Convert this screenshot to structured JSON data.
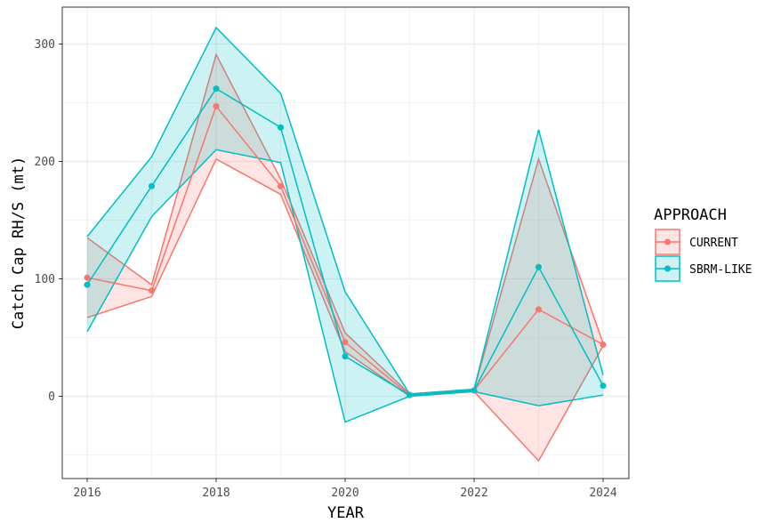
{
  "chart_data": {
    "type": "line",
    "xlabel": "YEAR",
    "ylabel": "Catch Cap RH/S (mt)",
    "x": [
      2016,
      2017,
      2018,
      2019,
      2020,
      2021,
      2022,
      2023,
      2024
    ],
    "xticks": [
      2016,
      2018,
      2020,
      2022,
      2024
    ],
    "xlim": [
      2015.6,
      2024.4
    ],
    "yticks": [
      0,
      100,
      200,
      300
    ],
    "ylim": [
      -70,
      330
    ],
    "grid": true,
    "legend": {
      "title": "APPROACH",
      "position": "right"
    },
    "series": [
      {
        "name": "CURRENT",
        "color": "#f8766d",
        "values": [
          101,
          90,
          247,
          179,
          46,
          1,
          5,
          74,
          44
        ],
        "lower": [
          67,
          85,
          202,
          172,
          38,
          0,
          4,
          -55,
          43
        ],
        "upper": [
          135,
          95,
          291,
          185,
          54,
          2,
          6,
          202,
          45
        ]
      },
      {
        "name": "SBRM-LIKE",
        "color": "#00bfc4",
        "values": [
          95,
          179,
          262,
          229,
          34,
          1,
          5,
          110,
          9
        ],
        "lower": [
          55,
          153,
          210,
          199,
          -22,
          0,
          4,
          -8,
          1
        ],
        "upper": [
          136,
          204,
          314,
          258,
          89,
          2,
          6,
          227,
          18
        ]
      }
    ]
  }
}
